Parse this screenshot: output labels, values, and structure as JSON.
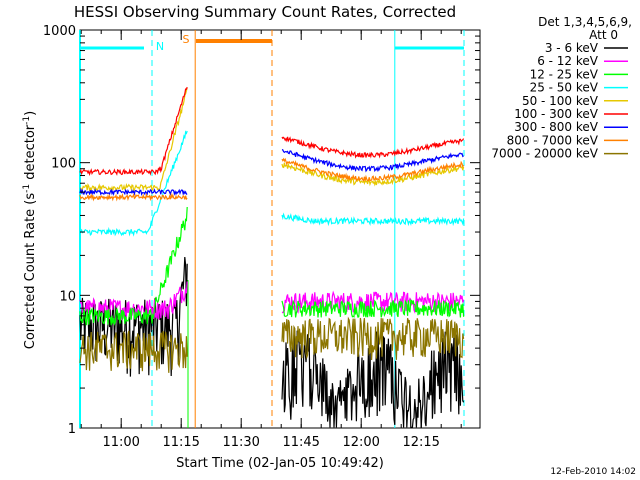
{
  "chart_data": {
    "type": "line",
    "title": "HESSI Observing Summary Count Rates, Corrected",
    "xlabel": "Start Time (02-Jan-05 10:49:42)",
    "ylabel_main": "Corrected Count Rate (s",
    "ylabel_sup1": "-1",
    "ylabel_mid": " detector",
    "ylabel_sup2": "-1",
    "ylabel_end": ")",
    "yscale": "log",
    "ylim": [
      1,
      1000
    ],
    "xlim_minutes": [
      0,
      100
    ],
    "x_ticks": [
      {
        "minute": 10.3,
        "label": "11:00"
      },
      {
        "minute": 25.3,
        "label": "11:15"
      },
      {
        "minute": 40.3,
        "label": "11:30"
      },
      {
        "minute": 55.3,
        "label": "11:45"
      },
      {
        "minute": 70.3,
        "label": "12:00"
      },
      {
        "minute": 85.3,
        "label": "12:15"
      }
    ],
    "y_ticks": [
      {
        "value": 1,
        "label": "1"
      },
      {
        "value": 10,
        "label": "10"
      },
      {
        "value": 100,
        "label": "100"
      },
      {
        "value": 1000,
        "label": "1000"
      }
    ],
    "legend": {
      "header": "Det 1,3,4,5,6,9,",
      "subheader": "Att 0",
      "position": "right"
    },
    "series": [
      {
        "name": "3 - 6 keV",
        "color": "#000000",
        "values": {
          "pre": 6,
          "post": 2.5
        }
      },
      {
        "name": "6 - 12 keV",
        "color": "#ff00ff",
        "values": {
          "pre": 8,
          "post": 9
        }
      },
      {
        "name": "12 - 25 keV",
        "color": "#00ff00",
        "values": {
          "pre": 7,
          "post": 8
        }
      },
      {
        "name": "25 - 50 keV",
        "color": "#00ffff",
        "values": {
          "pre": 30,
          "post": 33
        }
      },
      {
        "name": "50 - 100 keV",
        "color": "#e6c800",
        "values": {
          "pre": 65,
          "post": 75
        }
      },
      {
        "name": "100 - 300 keV",
        "color": "#ff0000",
        "values": {
          "pre": 85,
          "post": 120
        }
      },
      {
        "name": "300 - 800 keV",
        "color": "#0000ff",
        "values": {
          "pre": 60,
          "post": 95
        }
      },
      {
        "name": "800 - 7000 keV",
        "color": "#ff8000",
        "values": {
          "pre": 55,
          "post": 80
        }
      },
      {
        "name": "7000 - 20000 keV",
        "color": "#8b7500",
        "values": {
          "pre": 4,
          "post": 5
        }
      }
    ],
    "flags": [
      {
        "label": "N",
        "color": "#00ffff"
      },
      {
        "label": "S",
        "color": "#ff8000"
      }
    ]
  },
  "footer_date": "12-Feb-2010 14:02"
}
